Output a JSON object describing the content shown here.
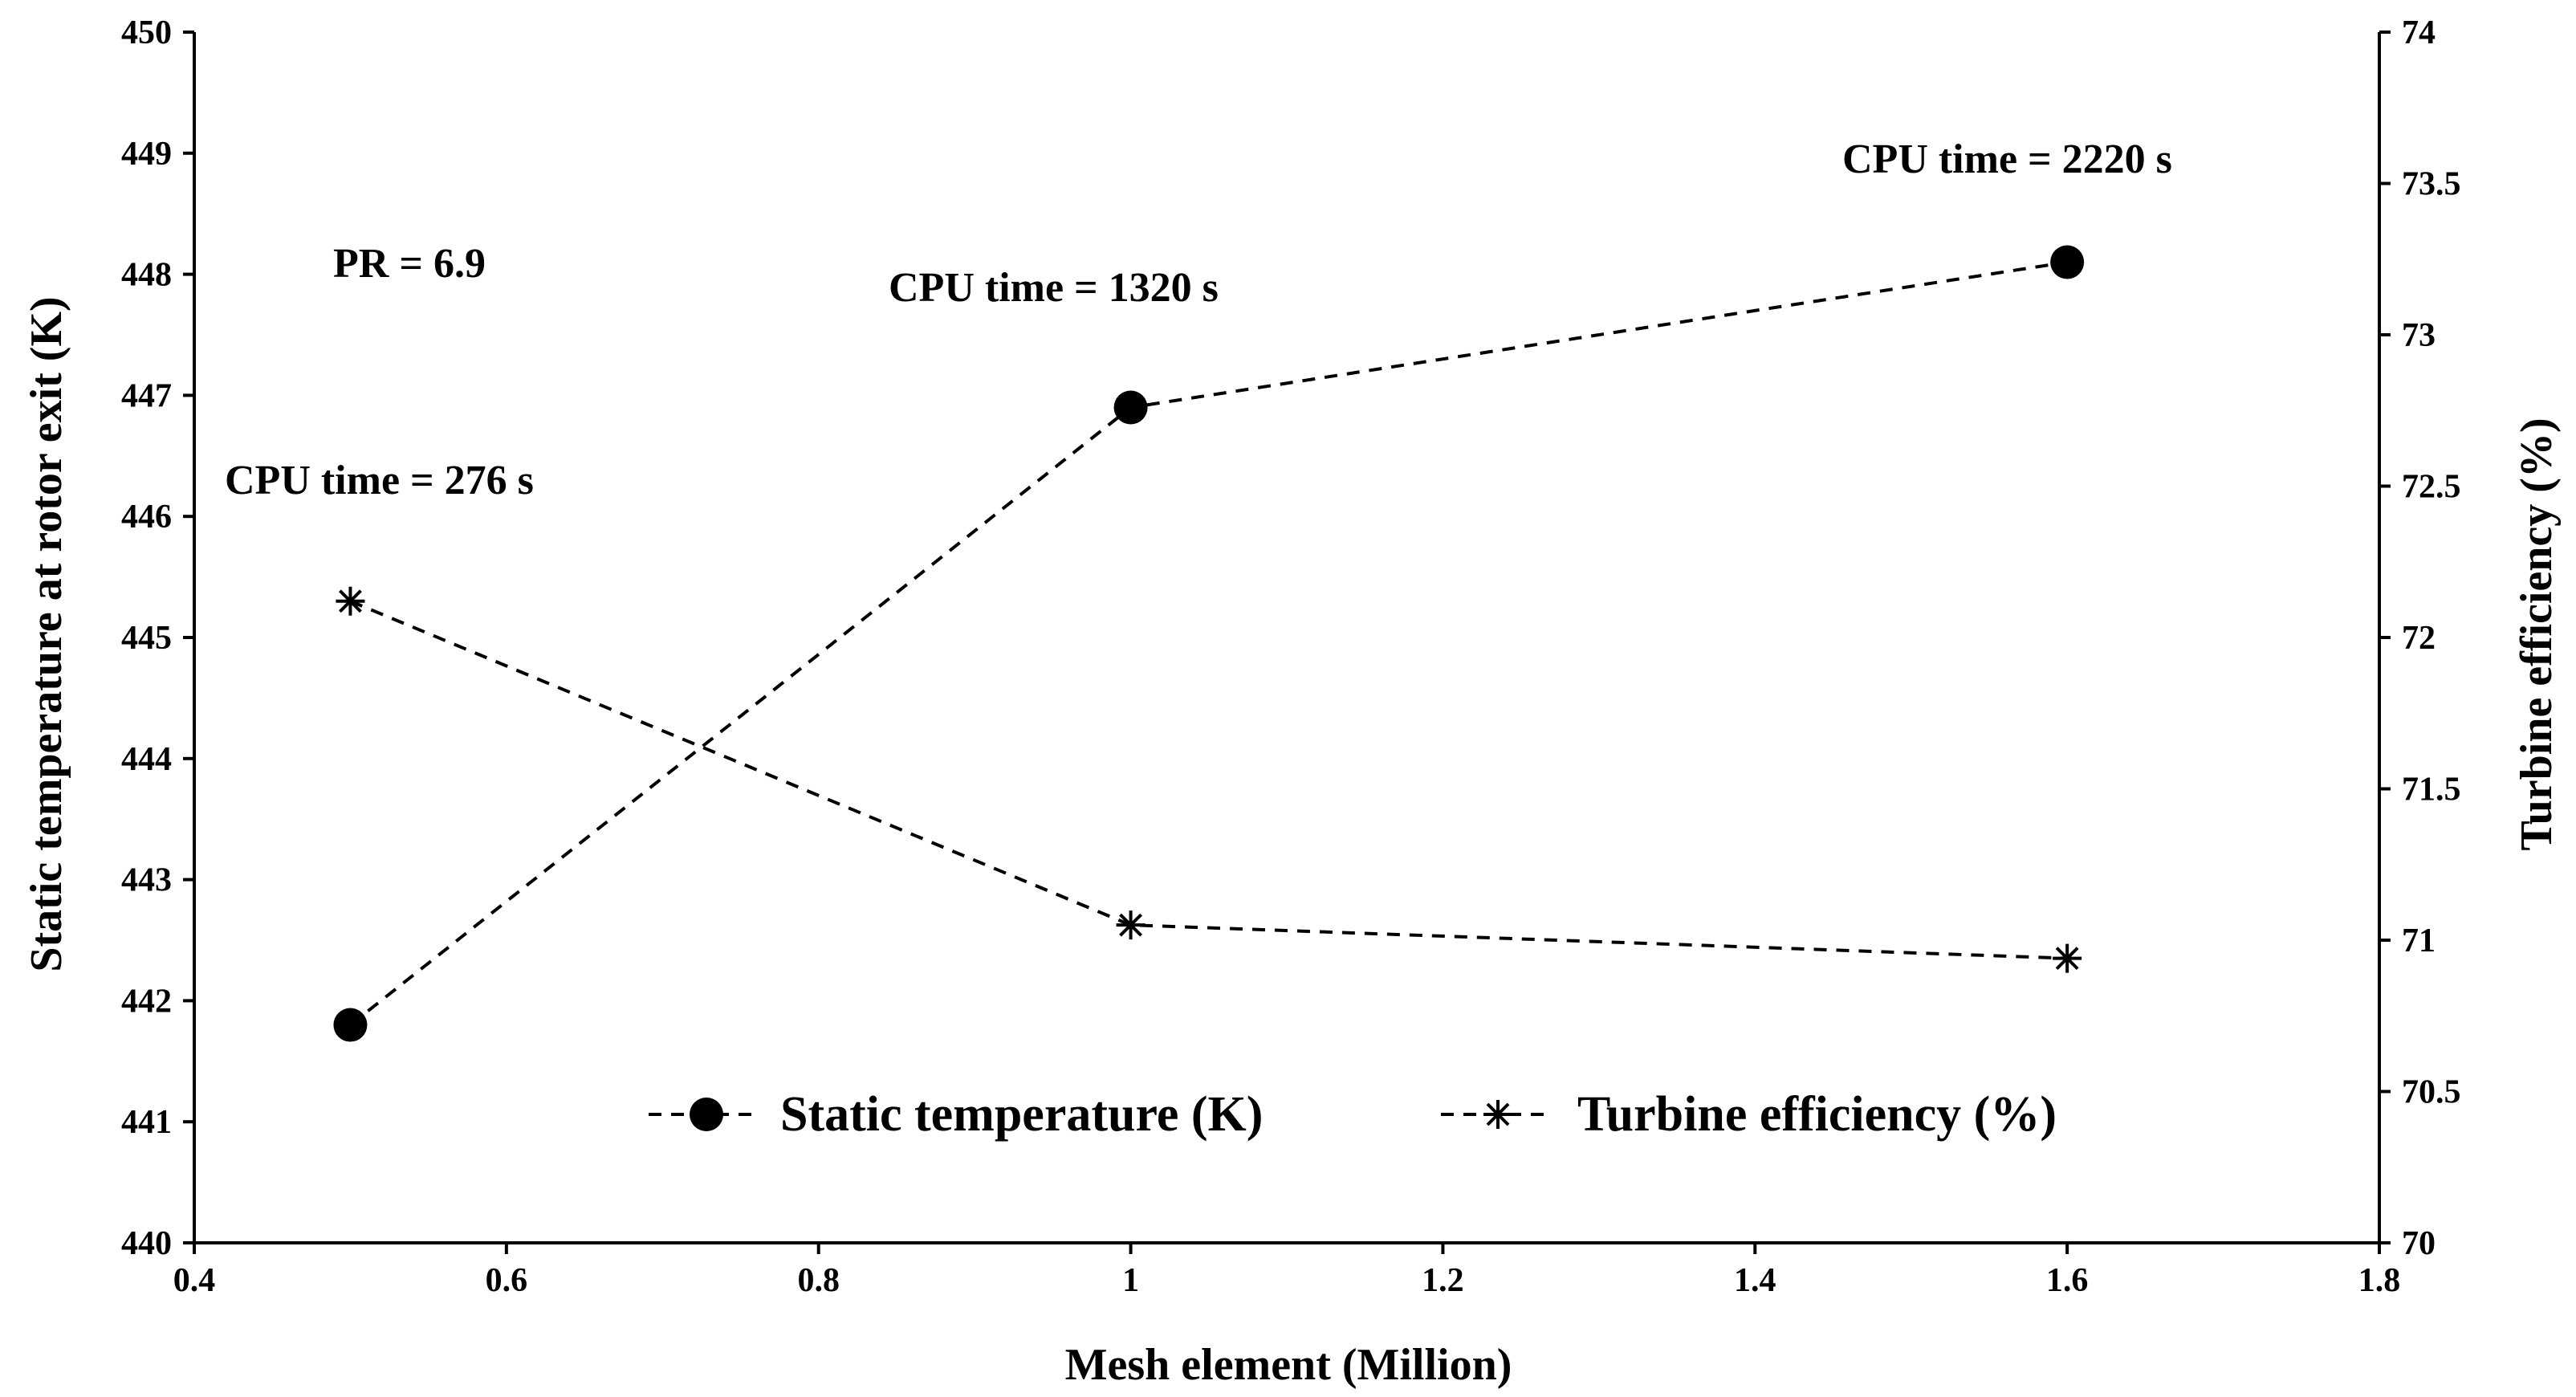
{
  "chart_data": {
    "type": "line",
    "title": "",
    "xlabel": "Mesh element (Million)",
    "ylabel_left": "Static temperature at rotor exit (K)",
    "ylabel_right": "Turbine efficiency (%)",
    "xlim": [
      0.4,
      1.8
    ],
    "ylim_left": [
      440,
      450
    ],
    "ylim_right": [
      70,
      74
    ],
    "x_ticks": [
      "0.4",
      "0.6",
      "0.8",
      "1",
      "1.2",
      "1.4",
      "1.6",
      "1.8"
    ],
    "y_left_ticks": [
      "440",
      "441",
      "442",
      "443",
      "444",
      "445",
      "446",
      "447",
      "448",
      "449",
      "450"
    ],
    "y_right_ticks": [
      "70",
      "70.5",
      "71",
      "71.5",
      "72",
      "72.5",
      "73",
      "73.5",
      "74"
    ],
    "grid": false,
    "series": [
      {
        "name": "Static temperature (K)",
        "axis": "left",
        "marker": "circle",
        "line": "dashed",
        "x": [
          0.5,
          1.0,
          1.6
        ],
        "values": [
          441.8,
          446.9,
          448.1
        ]
      },
      {
        "name": "Turbine efficiency (%)",
        "axis": "right",
        "marker": "asterisk",
        "line": "dashed",
        "x": [
          0.5,
          1.0,
          1.6
        ],
        "values": [
          72.12,
          71.05,
          70.94
        ]
      }
    ],
    "annotations": [
      {
        "text": "PR = 6.9"
      },
      {
        "text": "CPU time = 276 s"
      },
      {
        "text": "CPU time = 1320 s"
      },
      {
        "text": "CPU time = 2220 s"
      }
    ],
    "legend": {
      "placement": "bottom-center",
      "entries": [
        "Static temperature (K)",
        "Turbine efficiency (%)"
      ]
    },
    "colors": {
      "line": "#000000",
      "background": "#ffffff"
    }
  }
}
